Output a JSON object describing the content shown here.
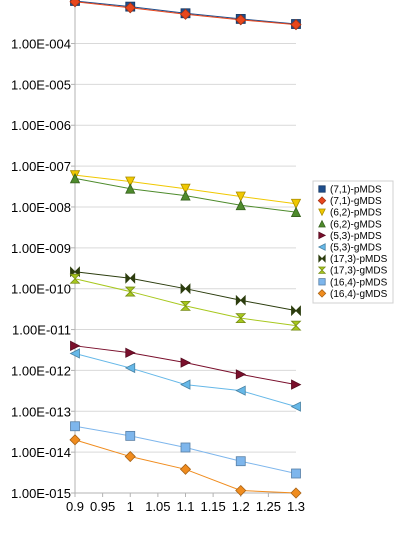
{
  "chart_data": {
    "type": "line",
    "y_scale": "log",
    "x": [
      0.9,
      1.0,
      1.1,
      1.2,
      1.3
    ],
    "x_tick_labels": [
      "0.9",
      "0.95",
      "1",
      "1.05",
      "1.1",
      "1.15",
      "1.2",
      "1.25",
      "1.3"
    ],
    "y_tick_labels": [
      "1.00E-015",
      "1.00E-014",
      "1.00E-013",
      "1.00E-012",
      "1.00E-011",
      "1.00E-010",
      "1.00E-009",
      "1.00E-008",
      "1.00E-007",
      "1.00E-006",
      "1.00E-005",
      "1.00E-004"
    ],
    "xlim": [
      0.9,
      1.3
    ],
    "ylim": [
      1e-15,
      0.0013
    ],
    "grid": "horizontal",
    "legend_position": "right",
    "series": [
      {
        "name": "(7,1)-pMDS",
        "color": "#1f4e8c",
        "marker": "square",
        "values": [
          0.0011,
          0.0008,
          0.00055,
          0.0004,
          0.0003
        ]
      },
      {
        "name": "(7,1)-gMDS",
        "color": "#e8461c",
        "marker": "diamond",
        "values": [
          0.00105,
          0.00075,
          0.00052,
          0.00038,
          0.00029
        ]
      },
      {
        "name": "(6,2)-pMDS",
        "color": "#f0c800",
        "marker": "triangle-down",
        "values": [
          6e-08,
          4.2e-08,
          2.8e-08,
          1.8e-08,
          1.2e-08
        ]
      },
      {
        "name": "(6,2)-gMDS",
        "color": "#4e8b2c",
        "marker": "triangle-up",
        "values": [
          5e-08,
          2.8e-08,
          1.9e-08,
          1.1e-08,
          7.5e-09
        ]
      },
      {
        "name": "(5,3)-pMDS",
        "color": "#7a0f2c",
        "marker": "triangle-right",
        "values": [
          4e-12,
          2.7e-12,
          1.55e-12,
          8e-13,
          4.5e-13
        ]
      },
      {
        "name": "(5,3)-gMDS",
        "color": "#66b8e8",
        "marker": "triangle-left",
        "values": [
          2.6e-12,
          1.15e-12,
          4.5e-13,
          3.2e-13,
          1.3e-13
        ]
      },
      {
        "name": "(17,3)-pMDS",
        "color": "#2c3d0e",
        "marker": "bowtie",
        "values": [
          2.6e-10,
          1.8e-10,
          1e-10,
          5.2e-11,
          2.9e-11
        ]
      },
      {
        "name": "(17,3)-gMDS",
        "color": "#a8c81e",
        "marker": "hourglass",
        "values": [
          1.75e-10,
          8.5e-11,
          3.8e-11,
          1.9e-11,
          1.25e-11
        ]
      },
      {
        "name": "(16,4)-pMDS",
        "color": "#7eb6ec",
        "marker": "square",
        "values": [
          4.3e-14,
          2.5e-14,
          1.3e-14,
          6e-15,
          3e-15
        ]
      },
      {
        "name": "(16,4)-gMDS",
        "color": "#f08c1e",
        "marker": "diamond",
        "values": [
          2e-14,
          7.8e-15,
          3.8e-15,
          1.15e-15,
          1e-15
        ]
      }
    ]
  }
}
